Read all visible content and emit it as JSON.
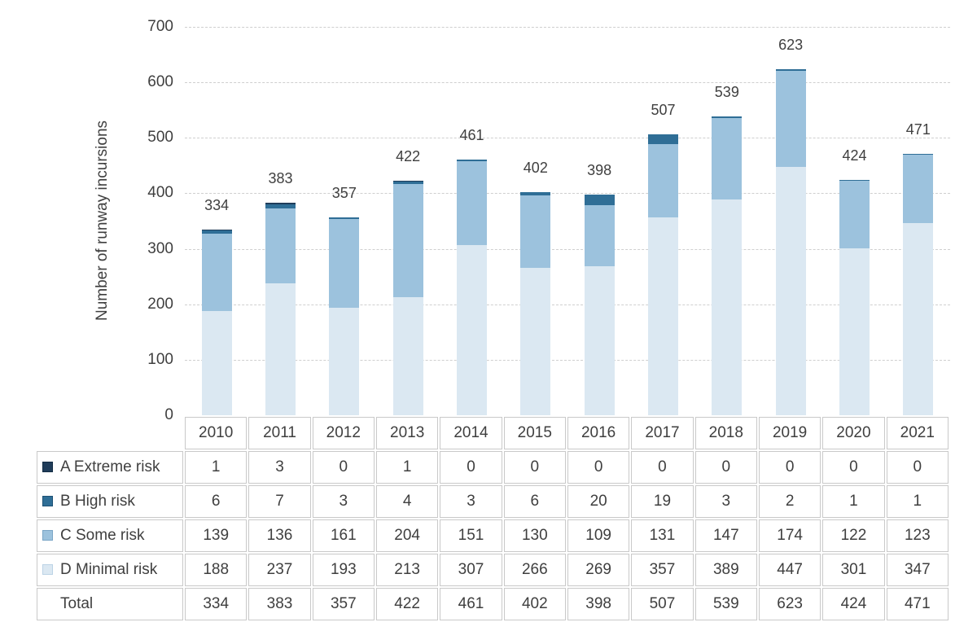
{
  "chart_data": {
    "type": "bar",
    "stacked": true,
    "title": "",
    "xlabel": "",
    "ylabel": "Number of runway incursions",
    "ylim": [
      0,
      700
    ],
    "ytick_step": 100,
    "grid": "horizontal-dashed",
    "legend_position": "table-left",
    "categories": [
      "2010",
      "2011",
      "2012",
      "2013",
      "2014",
      "2015",
      "2016",
      "2017",
      "2018",
      "2019",
      "2020",
      "2021"
    ],
    "series": [
      {
        "name": "A Extreme risk",
        "color": "#203d5a",
        "swatch_border": "#132c44",
        "values": [
          1,
          3,
          0,
          1,
          0,
          0,
          0,
          0,
          0,
          0,
          0,
          0
        ]
      },
      {
        "name": "B High risk",
        "color": "#2f6e96",
        "swatch_border": "#1d5175",
        "values": [
          6,
          7,
          3,
          4,
          3,
          6,
          20,
          19,
          3,
          2,
          1,
          1
        ]
      },
      {
        "name": "C Some risk",
        "color": "#9cc2dd",
        "swatch_border": "#7ba6c6",
        "values": [
          139,
          136,
          161,
          204,
          151,
          130,
          109,
          131,
          147,
          174,
          122,
          123
        ]
      },
      {
        "name": "D Minimal risk",
        "color": "#dbe8f2",
        "swatch_border": "#bcd3e6",
        "values": [
          188,
          237,
          193,
          213,
          307,
          266,
          269,
          357,
          389,
          447,
          301,
          347
        ]
      }
    ],
    "totals": [
      334,
      383,
      357,
      422,
      461,
      402,
      398,
      507,
      539,
      623,
      424,
      471
    ],
    "total_row_label": "Total",
    "colors": {
      "gridline": "#cfcfcf",
      "table_border": "#c9c9c9",
      "text": "#3f3f3f",
      "background": "#ffffff"
    }
  }
}
